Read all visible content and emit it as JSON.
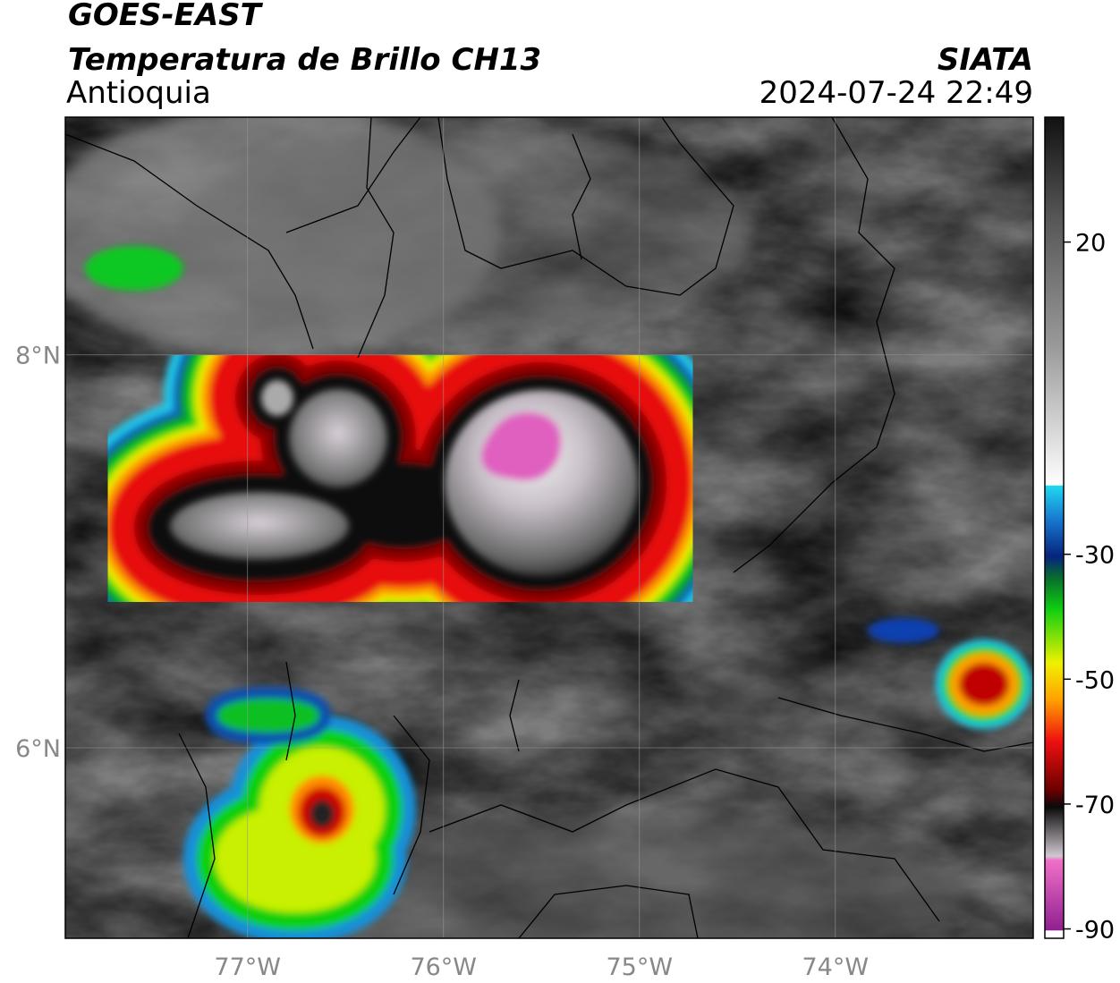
{
  "header": {
    "title": "GOES-EAST",
    "subtitle": "Temperatura de Brillo CH13",
    "region": "Antioquia",
    "source": "SIATA",
    "datetime": "2024-07-24 22:49"
  },
  "map": {
    "lonlim": [
      -77.93,
      -72.99
    ],
    "latlim": [
      5.03,
      9.21
    ],
    "lonticks": [
      {
        "value": -77,
        "label": "77°W"
      },
      {
        "value": -76,
        "label": "76°W"
      },
      {
        "value": -75,
        "label": "75°W"
      },
      {
        "value": -74,
        "label": "74°W"
      }
    ],
    "latticks": [
      {
        "value": 8,
        "label": "8°N"
      },
      {
        "value": 6,
        "label": "6°N"
      }
    ]
  },
  "colorbar": {
    "lim": [
      -91.5,
      40
    ],
    "ticks": [
      20,
      -30,
      -50,
      -70,
      -90
    ]
  }
}
